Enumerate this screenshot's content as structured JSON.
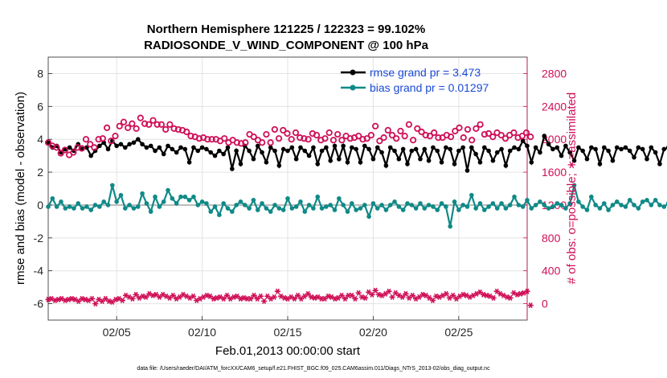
{
  "chart_data": {
    "type": "line",
    "title_line1": "Northern Hemisphere 121225 / 122323 = 99.102%",
    "title_line2": "RADIOSONDE_V_WIND_COMPONENT @ 100 hPa",
    "xlabel": "Feb.01,2013 00:00:00 start",
    "ylabel_left": "rmse and bias (model - observation)",
    "ylabel_right": "# of obs: o=possible; ∗=assimilated",
    "footnote": "data file: /Users/raeder/DAI/ATM_forcXX/CAM6_setup/f.e21.FHIST_BGC.f09_025.CAM6assim.011/Diags_NTrS_2013-02/obs_diag_output.nc",
    "xlim": [
      1,
      29
    ],
    "x_ticks": [
      5,
      10,
      15,
      20,
      25
    ],
    "x_tick_labels": [
      "02/05",
      "02/10",
      "02/15",
      "02/20",
      "02/25"
    ],
    "ylim_left": [
      -7,
      9
    ],
    "y_ticks_left": [
      -6,
      -4,
      -2,
      0,
      2,
      4,
      6,
      8
    ],
    "y_tick_labels_left": [
      "-6",
      "-4",
      "-2",
      "0",
      "2",
      "4",
      "6",
      "8"
    ],
    "ylim_right": [
      -200,
      3000
    ],
    "y_ticks_right": [
      0,
      400,
      800,
      1200,
      1600,
      2000,
      2400,
      2800
    ],
    "y_tick_labels_right": [
      "0",
      "400",
      "800",
      "1200",
      "1600",
      "2000",
      "2400",
      "2800"
    ],
    "grid": true,
    "legend_position": "top-right",
    "legend": [
      "rmse grand pr = 3.473",
      "bias grand pr = 0.01297"
    ],
    "x_step": 0.25,
    "series": [
      {
        "name": "rmse",
        "color": "#000000",
        "values": [
          3.8,
          3.5,
          3.6,
          3.2,
          3.4,
          3.5,
          3.3,
          3.7,
          3.4,
          3.5,
          3.0,
          3.3,
          3.6,
          3.8,
          3.4,
          3.9,
          3.6,
          3.7,
          3.5,
          3.7,
          3.8,
          4.0,
          3.7,
          3.5,
          3.6,
          3.3,
          3.5,
          3.1,
          3.6,
          3.4,
          3.2,
          3.5,
          3.4,
          2.6,
          3.5,
          3.3,
          3.5,
          3.4,
          3.2,
          3.0,
          3.3,
          3.1,
          3.5,
          2.2,
          3.3,
          2.5,
          3.6,
          3.3,
          2.8,
          3.6,
          3.2,
          2.6,
          3.5,
          3.3,
          2.4,
          3.4,
          3.3,
          3.5,
          2.8,
          3.5,
          3.3,
          3.0,
          3.5,
          2.5,
          3.3,
          3.5,
          2.7,
          3.6,
          2.8,
          3.6,
          2.6,
          3.5,
          3.4,
          2.6,
          3.6,
          3.4,
          2.8,
          3.5,
          3.2,
          2.4,
          3.5,
          3.3,
          2.8,
          3.4,
          2.5,
          3.3,
          3.4,
          2.8,
          3.4,
          2.7,
          3.5,
          3.3,
          2.6,
          3.5,
          3.4,
          2.5,
          3.3,
          3.5,
          2.1,
          3.5,
          3.1,
          2.6,
          3.5,
          3.3,
          2.7,
          3.2,
          3.4,
          2.4,
          3.3,
          3.5,
          3.4,
          3.9,
          3.6,
          2.6,
          3.5,
          3.2,
          4.2,
          3.7,
          3.4,
          3.5,
          3.0,
          3.6,
          3.2,
          2.7,
          3.5,
          3.3,
          2.8,
          3.5,
          3.4,
          2.5,
          3.5,
          3.3,
          2.7,
          3.5,
          3.4,
          3.5,
          3.3,
          2.9,
          3.5,
          3.4,
          2.8,
          3.5,
          3.2,
          2.5,
          3.4,
          3.5,
          2.9,
          3.3,
          3.2,
          3.3,
          2.9,
          3.4,
          3.5,
          2.7,
          3.4,
          3.2,
          2.5,
          3.5,
          3.3,
          3.6,
          3.5
        ],
        "marker": "filled-circle"
      },
      {
        "name": "bias",
        "color": "#0f8a87",
        "values": [
          -0.1,
          0.4,
          -0.1,
          0.2,
          -0.2,
          -0.1,
          -0.2,
          0.1,
          -0.2,
          -0.1,
          -0.3,
          0.0,
          -0.1,
          0.2,
          0.0,
          1.2,
          0.2,
          0.6,
          -0.2,
          0.0,
          -0.2,
          -0.1,
          0.7,
          0.1,
          -0.4,
          0.5,
          -0.1,
          0.2,
          0.9,
          0.4,
          0.1,
          0.5,
          0.5,
          0.3,
          0.5,
          0.0,
          0.2,
          0.1,
          -0.4,
          -0.1,
          -0.6,
          0.1,
          -0.2,
          -0.4,
          0.0,
          0.2,
          0.0,
          -0.2,
          0.3,
          -0.3,
          0.1,
          -0.2,
          -0.4,
          0.0,
          -0.2,
          -0.3,
          0.4,
          -0.2,
          -0.1,
          0.2,
          -0.4,
          0.0,
          -0.2,
          0.5,
          -0.2,
          -0.1,
          0.0,
          -0.3,
          0.4,
          0.0,
          -0.4,
          0.1,
          -0.3,
          -0.2,
          0.0,
          -0.7,
          0.1,
          -0.2,
          0.0,
          -0.3,
          0.0,
          0.2,
          -0.1,
          -0.3,
          0.1,
          0.0,
          -0.2,
          0.1,
          -0.2,
          0.0,
          -0.1,
          -0.3,
          0.1,
          -0.1,
          -1.3,
          0.2,
          -0.3,
          0.0,
          -0.1,
          0.6,
          -0.2,
          0.1,
          -0.3,
          -0.1,
          0.1,
          -0.2,
          0.1,
          -0.2,
          0.0,
          0.5,
          0.0,
          -0.1,
          0.3,
          -0.2,
          0.0,
          0.2,
          0.0,
          -0.2,
          -0.1,
          0.1,
          0.0,
          -0.2,
          0.1,
          1.2,
          0.2,
          -0.1,
          -0.3,
          0.5,
          0.0,
          -0.2,
          0.1,
          -0.3,
          0.0,
          0.2,
          0.0,
          -0.1,
          0.3,
          0.0,
          -0.2,
          0.2,
          0.3,
          0.0,
          0.3,
          0.0,
          -0.1,
          0.1,
          0.0,
          -0.2,
          0.1,
          0.0,
          -0.1,
          0.3,
          0.4,
          -0.4
        ],
        "marker": "filled-circle"
      },
      {
        "name": "obs possible",
        "color": "#cf0f57",
        "axis": "right",
        "x_start": 1.0,
        "values": [
          1960,
          1920,
          1900,
          1830,
          1870,
          1810,
          1840,
          1900,
          1890,
          2000,
          1940,
          1900,
          2000,
          2010,
          2140,
          1980,
          2040,
          2160,
          2210,
          2140,
          2190,
          2130,
          2260,
          2190,
          2180,
          2230,
          2180,
          2180,
          2120,
          2180,
          2130,
          2120,
          2110,
          2090,
          2040,
          2030,
          2010,
          2020,
          2000,
          2000,
          2000,
          1980,
          2010,
          1960,
          1990,
          1960,
          1950,
          1960,
          2060,
          2030,
          1990,
          1960,
          2060,
          1960,
          2120,
          2010,
          2110,
          2070,
          2000,
          2080,
          2020,
          2010,
          2000,
          2070,
          2050,
          1990,
          2010,
          2080,
          1990,
          2060,
          1990,
          2040,
          2010,
          2020,
          2040,
          2000,
          2010,
          2050,
          2160,
          1980,
          2020,
          2110,
          2050,
          2010,
          2100,
          2040,
          2180,
          1990,
          2130,
          2090,
          2050,
          2040,
          2080,
          2020,
          2020,
          2050,
          2030,
          2100,
          2140,
          2020,
          2120,
          1990,
          2130,
          2180,
          2060,
          2070,
          2030,
          2080,
          2050,
          2010,
          2050,
          2080,
          2020,
          2040,
          2080,
          2030
        ],
        "marker": "open-circle"
      },
      {
        "name": "obs assimilated",
        "color": "#cf0f57",
        "axis": "right",
        "x_start": 1.0,
        "values": [
          50,
          60,
          40,
          50,
          60,
          40,
          50,
          60,
          50,
          30,
          60,
          50,
          40,
          60,
          0,
          50,
          30,
          60,
          30,
          20,
          50,
          60,
          40,
          100,
          80,
          60,
          110,
          70,
          90,
          80,
          120,
          100,
          110,
          80,
          110,
          90,
          70,
          100,
          60,
          80,
          110,
          90,
          70,
          90,
          40,
          60,
          80,
          100,
          90,
          60,
          70,
          80,
          60,
          100,
          60,
          80,
          90,
          60,
          70,
          60,
          60,
          100,
          60,
          90,
          30,
          90,
          60,
          80,
          150,
          90,
          70,
          60,
          80,
          60,
          100,
          60,
          90,
          120,
          80,
          70,
          80,
          60,
          60,
          90,
          80,
          60,
          70,
          100,
          60,
          100,
          100,
          60,
          130,
          80,
          70,
          140,
          110,
          160,
          110,
          100,
          120,
          150,
          80,
          130,
          100,
          80,
          120,
          70,
          100,
          60,
          80,
          110,
          100,
          70,
          40,
          90,
          80,
          100,
          120,
          70,
          100,
          60,
          90,
          110,
          100,
          80,
          100,
          120,
          140,
          110,
          100,
          90,
          70,
          150,
          120,
          100,
          80,
          70,
          130,
          110,
          120,
          130,
          150,
          -20
        ],
        "marker": "asterisk"
      }
    ]
  }
}
